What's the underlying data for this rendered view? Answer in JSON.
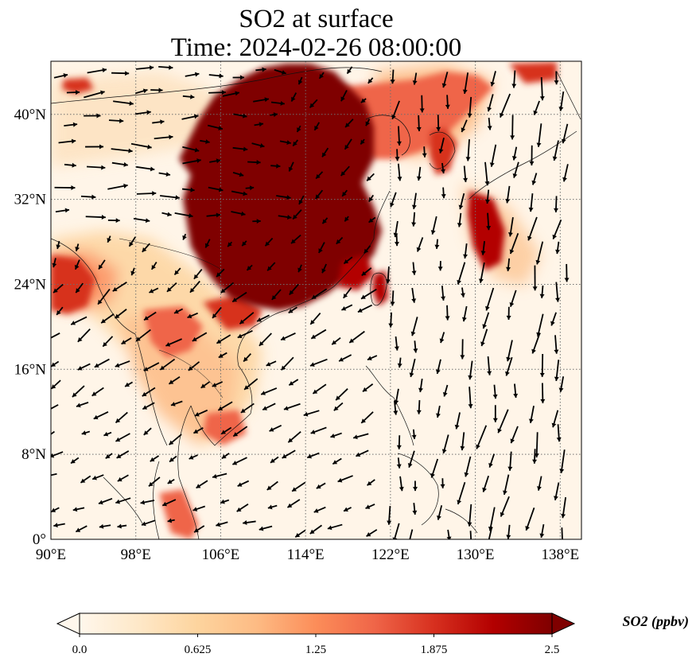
{
  "title": {
    "line1": "SO2 at surface",
    "line2": "Time: 2024-02-26 08:00:00"
  },
  "map": {
    "extent": {
      "lon": [
        90,
        140
      ],
      "lat": [
        0,
        45
      ]
    },
    "lon_ticks": [
      {
        "value": 90,
        "label": "90°E"
      },
      {
        "value": 98,
        "label": "98°E"
      },
      {
        "value": 106,
        "label": "106°E"
      },
      {
        "value": 114,
        "label": "114°E"
      },
      {
        "value": 122,
        "label": "122°E"
      },
      {
        "value": 130,
        "label": "130°E"
      },
      {
        "value": 138,
        "label": "138°E"
      }
    ],
    "lat_ticks": [
      {
        "value": 0,
        "label": "0°"
      },
      {
        "value": 8,
        "label": "8°N"
      },
      {
        "value": 16,
        "label": "16°N"
      },
      {
        "value": 24,
        "label": "24°N"
      },
      {
        "value": 32,
        "label": "32°N"
      },
      {
        "value": 40,
        "label": "40°N"
      }
    ],
    "gridlines": "dotted",
    "ocean_color": "#fff5e8",
    "high_color": "#7f0000"
  },
  "colorbar": {
    "title": "SO2 (ppbv)",
    "min": 0,
    "max": 2.5,
    "ticks": [
      "0.0",
      "0.625",
      "1.25",
      "1.875",
      "2.5"
    ],
    "colors": [
      "#fff7ec",
      "#fee8c8",
      "#fdd49e",
      "#fdbb84",
      "#fc8d59",
      "#ef6548",
      "#d7301f",
      "#b30000",
      "#7f0000"
    ],
    "extend": "both"
  }
}
